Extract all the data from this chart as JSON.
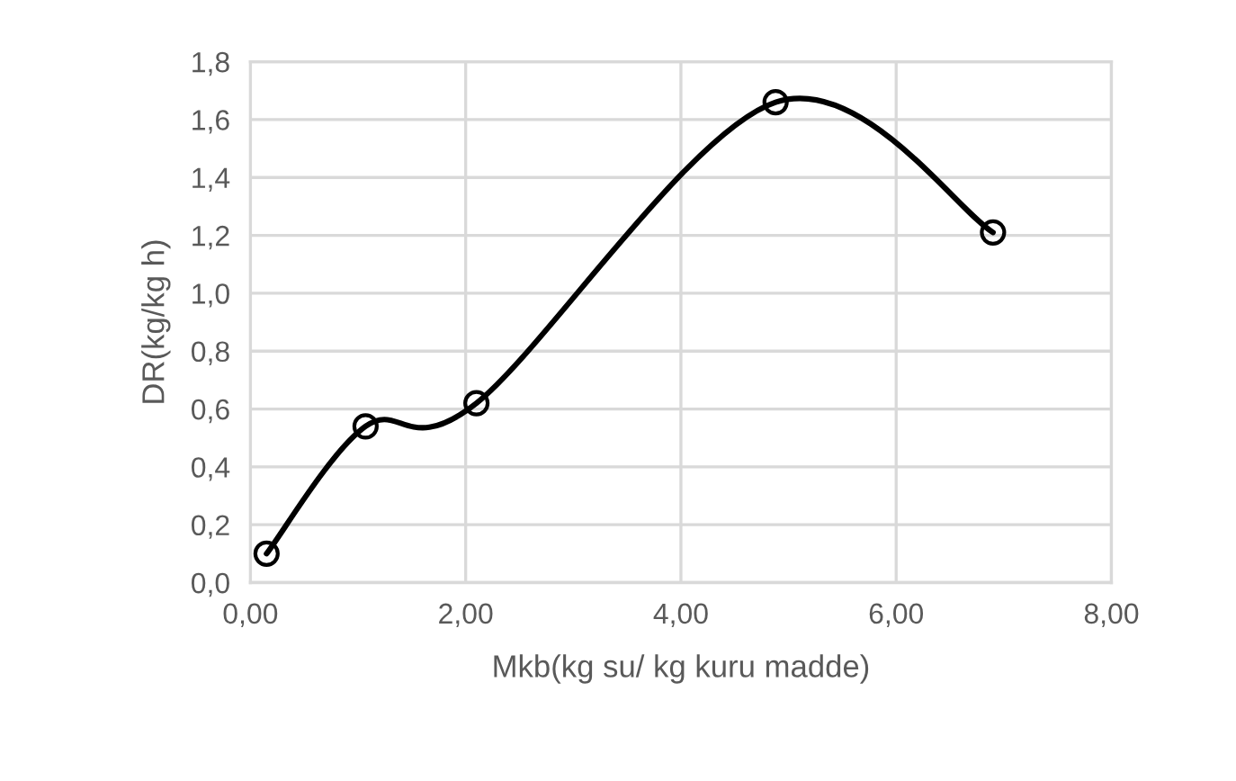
{
  "chart_data": {
    "type": "line",
    "xlabel": "Mkb(kg su/ kg kuru madde)",
    "ylabel": "DR(kg/kg h)",
    "x": [
      0.15,
      1.07,
      2.1,
      4.88,
      6.9
    ],
    "series": [
      {
        "color": "#000000",
        "values": [
          0.1,
          0.54,
          0.62,
          1.66,
          1.21
        ]
      }
    ],
    "marker": "circle",
    "line_style": "solid",
    "grid": true,
    "xlim": [
      0,
      8
    ],
    "xticks": [
      {
        "value": 0,
        "label": "0,00"
      },
      {
        "value": 2,
        "label": "2,00"
      },
      {
        "value": 4,
        "label": "4,00"
      },
      {
        "value": 6,
        "label": "6,00"
      },
      {
        "value": 8,
        "label": "8,00"
      }
    ],
    "ylim": [
      0,
      1.8
    ],
    "yticks": [
      {
        "value": 0,
        "label": "0,0"
      },
      {
        "value": 0.2,
        "label": "0,2"
      },
      {
        "value": 0.4,
        "label": "0,4"
      },
      {
        "value": 0.6,
        "label": "0,6"
      },
      {
        "value": 0.8,
        "label": "0,8"
      },
      {
        "value": 1.0,
        "label": "1,0"
      },
      {
        "value": 1.2,
        "label": "1,2"
      },
      {
        "value": 1.4,
        "label": "1,4"
      },
      {
        "value": 1.6,
        "label": "1,6"
      },
      {
        "value": 1.8,
        "label": "1,8"
      }
    ]
  }
}
